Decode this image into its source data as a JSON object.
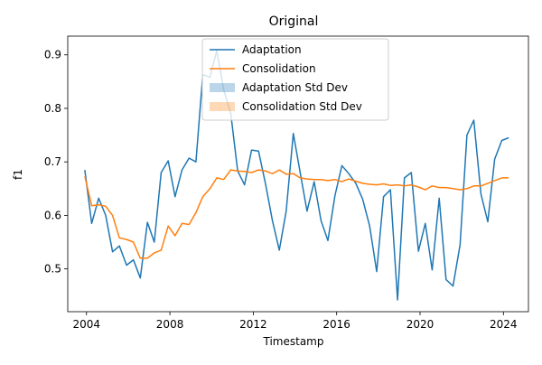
{
  "chart_data": {
    "type": "line",
    "title": "Original",
    "xlabel": "Timestamp",
    "ylabel": "f1",
    "xlim": [
      2003.1,
      2025.2
    ],
    "ylim": [
      0.42,
      0.935
    ],
    "x_ticks": [
      2004,
      2008,
      2012,
      2016,
      2020,
      2024
    ],
    "y_ticks": [
      0.5,
      0.6,
      0.7,
      0.8,
      0.9
    ],
    "grid": false,
    "legend_position": "upper center",
    "legend": [
      {
        "label": "Adaptation",
        "kind": "line",
        "color": "#1f77b4"
      },
      {
        "label": "Consolidation",
        "kind": "line",
        "color": "#ff7f0e"
      },
      {
        "label": "Adaptation Std Dev",
        "kind": "patch",
        "color": "#1f77b4",
        "alpha": 0.3
      },
      {
        "label": "Consolidation Std Dev",
        "kind": "patch",
        "color": "#ff7f0e",
        "alpha": 0.3
      }
    ],
    "series": [
      {
        "name": "Adaptation",
        "color": "#1f77b4",
        "x": [
          2003.92,
          2004.25,
          2004.58,
          2004.92,
          2005.25,
          2005.58,
          2005.92,
          2006.25,
          2006.58,
          2006.92,
          2007.25,
          2007.58,
          2007.92,
          2008.25,
          2008.58,
          2008.92,
          2009.25,
          2009.58,
          2009.92,
          2010.25,
          2010.58,
          2010.92,
          2011.25,
          2011.58,
          2011.92,
          2012.25,
          2012.58,
          2012.92,
          2013.25,
          2013.58,
          2013.92,
          2014.25,
          2014.58,
          2014.92,
          2015.25,
          2015.58,
          2015.92,
          2016.25,
          2016.58,
          2016.92,
          2017.25,
          2017.58,
          2017.92,
          2018.25,
          2018.58,
          2018.92,
          2019.25,
          2019.58,
          2019.92,
          2020.25,
          2020.58,
          2020.92,
          2021.25,
          2021.58,
          2021.92,
          2022.25,
          2022.58,
          2022.92,
          2023.25,
          2023.58,
          2023.92,
          2024.25
        ],
        "y": [
          0.685,
          0.585,
          0.632,
          0.6,
          0.532,
          0.543,
          0.507,
          0.517,
          0.483,
          0.587,
          0.55,
          0.68,
          0.702,
          0.635,
          0.685,
          0.707,
          0.7,
          0.863,
          0.858,
          0.908,
          0.835,
          0.79,
          0.683,
          0.657,
          0.722,
          0.72,
          0.66,
          0.59,
          0.535,
          0.608,
          0.753,
          0.68,
          0.608,
          0.663,
          0.59,
          0.553,
          0.637,
          0.693,
          0.678,
          0.66,
          0.63,
          0.58,
          0.495,
          0.635,
          0.648,
          0.442,
          0.67,
          0.68,
          0.533,
          0.585,
          0.498,
          0.632,
          0.48,
          0.468,
          0.545,
          0.75,
          0.778,
          0.64,
          0.588,
          0.705,
          0.74,
          0.745
        ]
      },
      {
        "name": "Consolidation",
        "color": "#ff7f0e",
        "x": [
          2003.92,
          2004.25,
          2004.58,
          2004.92,
          2005.25,
          2005.58,
          2005.92,
          2006.25,
          2006.58,
          2006.92,
          2007.25,
          2007.58,
          2007.92,
          2008.25,
          2008.58,
          2008.92,
          2009.25,
          2009.58,
          2009.92,
          2010.25,
          2010.58,
          2010.92,
          2011.25,
          2011.58,
          2011.92,
          2012.25,
          2012.58,
          2012.92,
          2013.25,
          2013.58,
          2013.92,
          2014.25,
          2014.58,
          2014.92,
          2015.25,
          2015.58,
          2015.92,
          2016.25,
          2016.58,
          2016.92,
          2017.25,
          2017.58,
          2017.92,
          2018.25,
          2018.58,
          2018.92,
          2019.25,
          2019.58,
          2019.92,
          2020.25,
          2020.58,
          2020.92,
          2021.25,
          2021.58,
          2021.92,
          2022.25,
          2022.58,
          2022.92,
          2023.25,
          2023.58,
          2023.92,
          2024.25
        ],
        "y": [
          0.673,
          0.618,
          0.62,
          0.617,
          0.6,
          0.558,
          0.555,
          0.55,
          0.52,
          0.52,
          0.53,
          0.535,
          0.58,
          0.562,
          0.585,
          0.583,
          0.605,
          0.635,
          0.65,
          0.67,
          0.667,
          0.685,
          0.683,
          0.682,
          0.68,
          0.685,
          0.683,
          0.678,
          0.685,
          0.677,
          0.678,
          0.67,
          0.668,
          0.667,
          0.667,
          0.665,
          0.667,
          0.663,
          0.668,
          0.664,
          0.66,
          0.658,
          0.657,
          0.659,
          0.656,
          0.657,
          0.655,
          0.657,
          0.653,
          0.648,
          0.655,
          0.652,
          0.652,
          0.65,
          0.648,
          0.65,
          0.655,
          0.655,
          0.66,
          0.665,
          0.67,
          0.67
        ]
      }
    ]
  }
}
